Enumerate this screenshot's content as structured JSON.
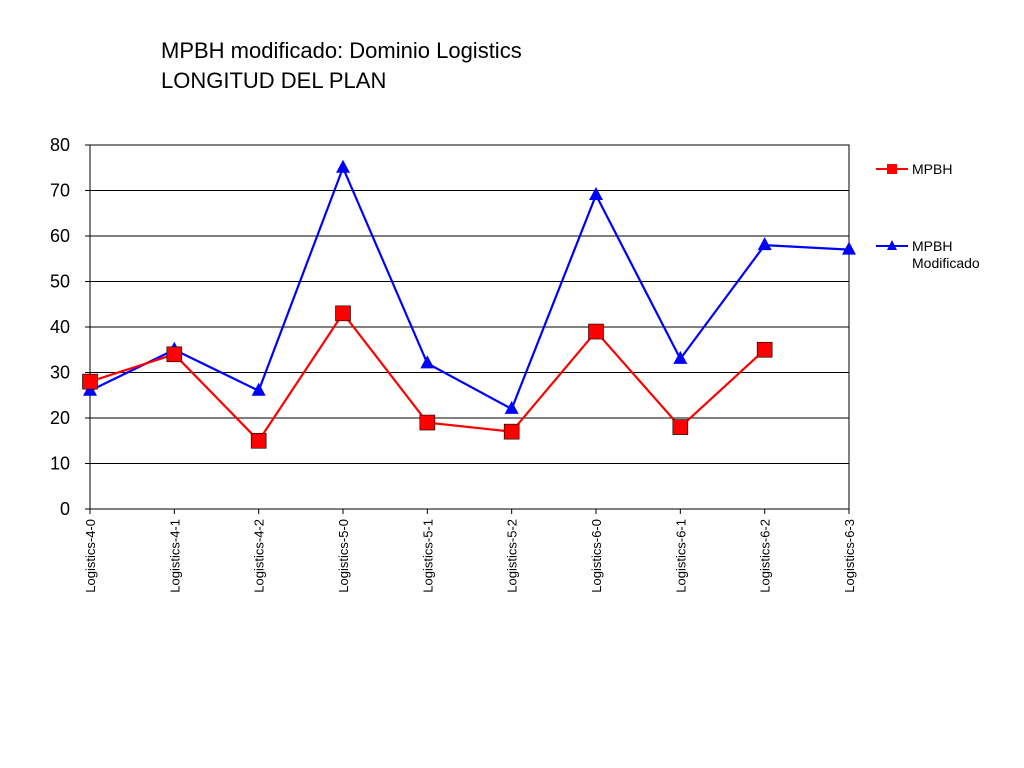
{
  "chart_data": {
    "type": "line",
    "title": [
      "MPBH modificado: Dominio Logistics",
      "LONGITUD DEL PLAN"
    ],
    "xlabel": "",
    "ylabel": "",
    "categories": [
      "Logistics-4-0",
      "Logistics-4-1",
      "Logistics-4-2",
      "Logistics-5-0",
      "Logistics-5-1",
      "Logistics-5-2",
      "Logistics-6-0",
      "Logistics-6-1",
      "Logistics-6-2",
      "Logistics-6-3"
    ],
    "ylim": [
      0,
      80
    ],
    "yticks": [
      0,
      10,
      20,
      30,
      40,
      50,
      60,
      70,
      80
    ],
    "grid": true,
    "legend_position": "right",
    "series": [
      {
        "name": "MPBH",
        "color": "#ff0000",
        "marker": "square",
        "values": [
          28,
          34,
          15,
          43,
          19,
          17,
          39,
          18,
          35,
          null
        ]
      },
      {
        "name": "MPBH Modificado",
        "legend_lines": [
          "MPBH",
          "Modificado"
        ],
        "color": "#0000ff",
        "marker": "triangle",
        "values": [
          26,
          35,
          26,
          75,
          32,
          22,
          69,
          33,
          58,
          57
        ]
      }
    ]
  }
}
